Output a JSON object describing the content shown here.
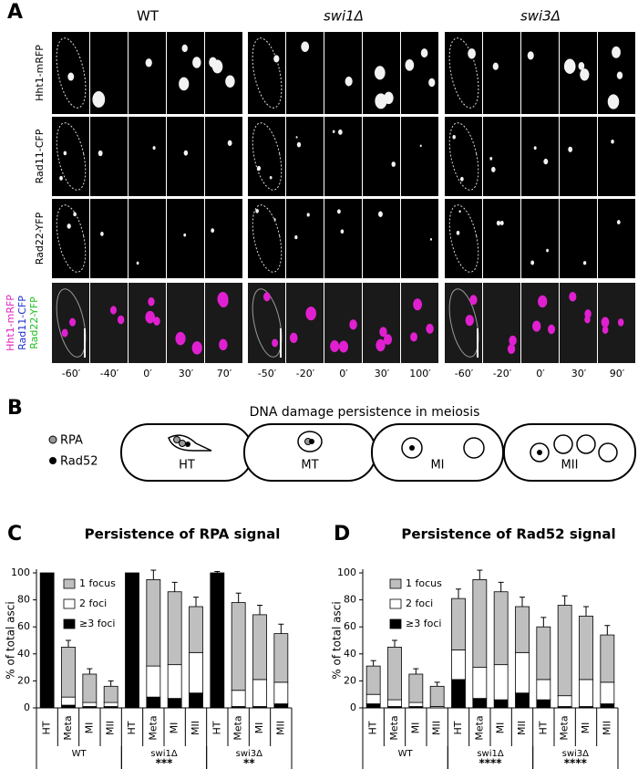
{
  "panel_a": {
    "letter": "A",
    "columns": [
      {
        "label": "WT",
        "times": [
          "-60′",
          "-40′",
          "0′",
          "30′",
          "70′"
        ]
      },
      {
        "label": "swi1Δ",
        "times": [
          "-50′",
          "-20′",
          "0′",
          "30′",
          "100′"
        ]
      },
      {
        "label": "swi3Δ",
        "times": [
          "-60′",
          "-20′",
          "0′",
          "30′",
          "90′"
        ]
      }
    ],
    "rows": [
      "Hht1-mRFP",
      "Rad11-CFP",
      "Rad22-YFP"
    ],
    "merge_labels": [
      "Hht1-mRFP",
      "Rad11-CFP",
      "Rad22-YFP"
    ]
  },
  "panel_b": {
    "letter": "B",
    "title": "DNA damage persistence in meiosis",
    "legend": [
      "RPA",
      "Rad52"
    ],
    "stages": [
      "HT",
      "MT",
      "MI",
      "MII"
    ]
  },
  "chart_data": [
    {
      "type": "bar",
      "stacked": true,
      "letter": "C",
      "title": "Persistence of RPA signal",
      "y_label": "% of total asci",
      "categories": [
        "HT",
        "Meta",
        "MI",
        "MII",
        "HT",
        "Meta",
        "MI",
        "MII",
        "HT",
        "Meta",
        "MI",
        "MII"
      ],
      "groups": [
        {
          "label": "WT"
        },
        {
          "label": "swi1Δ",
          "significance": "***"
        },
        {
          "label": "swi3Δ",
          "significance": "**"
        }
      ],
      "series": [
        {
          "name": "≥3 foci",
          "color": "#000000",
          "values": [
            100,
            2,
            1,
            1,
            100,
            8,
            7,
            11,
            100,
            1,
            1,
            3
          ]
        },
        {
          "name": "2 foci",
          "color": "#ffffff",
          "values": [
            0,
            6,
            3,
            3,
            0,
            23,
            25,
            30,
            0,
            12,
            20,
            16
          ]
        },
        {
          "name": "1 focus",
          "color": "#bfbfbf",
          "values": [
            0,
            37,
            21,
            12,
            0,
            64,
            54,
            34,
            0,
            65,
            48,
            36
          ]
        }
      ],
      "errors": [
        null,
        5,
        4,
        4,
        null,
        7,
        7,
        7,
        1,
        7,
        7,
        7
      ],
      "ylim": [
        0,
        100
      ],
      "yticks": [
        0,
        20,
        40,
        60,
        80,
        100
      ]
    },
    {
      "type": "bar",
      "stacked": true,
      "letter": "D",
      "title": "Persistence of Rad52 signal",
      "y_label": "% of total asci",
      "categories": [
        "HT",
        "Meta",
        "MI",
        "MII",
        "HT",
        "Meta",
        "MI",
        "MII",
        "HT",
        "Meta",
        "MI",
        "MII"
      ],
      "groups": [
        {
          "label": "WT"
        },
        {
          "label": "swi1Δ",
          "significance": "****"
        },
        {
          "label": "swi3Δ",
          "significance": "****"
        }
      ],
      "series": [
        {
          "name": "≥3 foci",
          "color": "#000000",
          "values": [
            3,
            1,
            1,
            0,
            21,
            7,
            6,
            11,
            6,
            1,
            1,
            3
          ]
        },
        {
          "name": "2 foci",
          "color": "#ffffff",
          "values": [
            7,
            5,
            3,
            1,
            22,
            23,
            26,
            30,
            15,
            8,
            20,
            16
          ]
        },
        {
          "name": "1 focus",
          "color": "#bfbfbf",
          "values": [
            21,
            39,
            21,
            15,
            38,
            65,
            54,
            34,
            39,
            67,
            47,
            35
          ]
        }
      ],
      "errors": [
        4,
        5,
        4,
        3,
        7,
        7,
        7,
        7,
        7,
        7,
        7,
        7
      ],
      "ylim": [
        0,
        100
      ],
      "yticks": [
        0,
        20,
        40,
        60,
        80,
        100
      ]
    }
  ]
}
